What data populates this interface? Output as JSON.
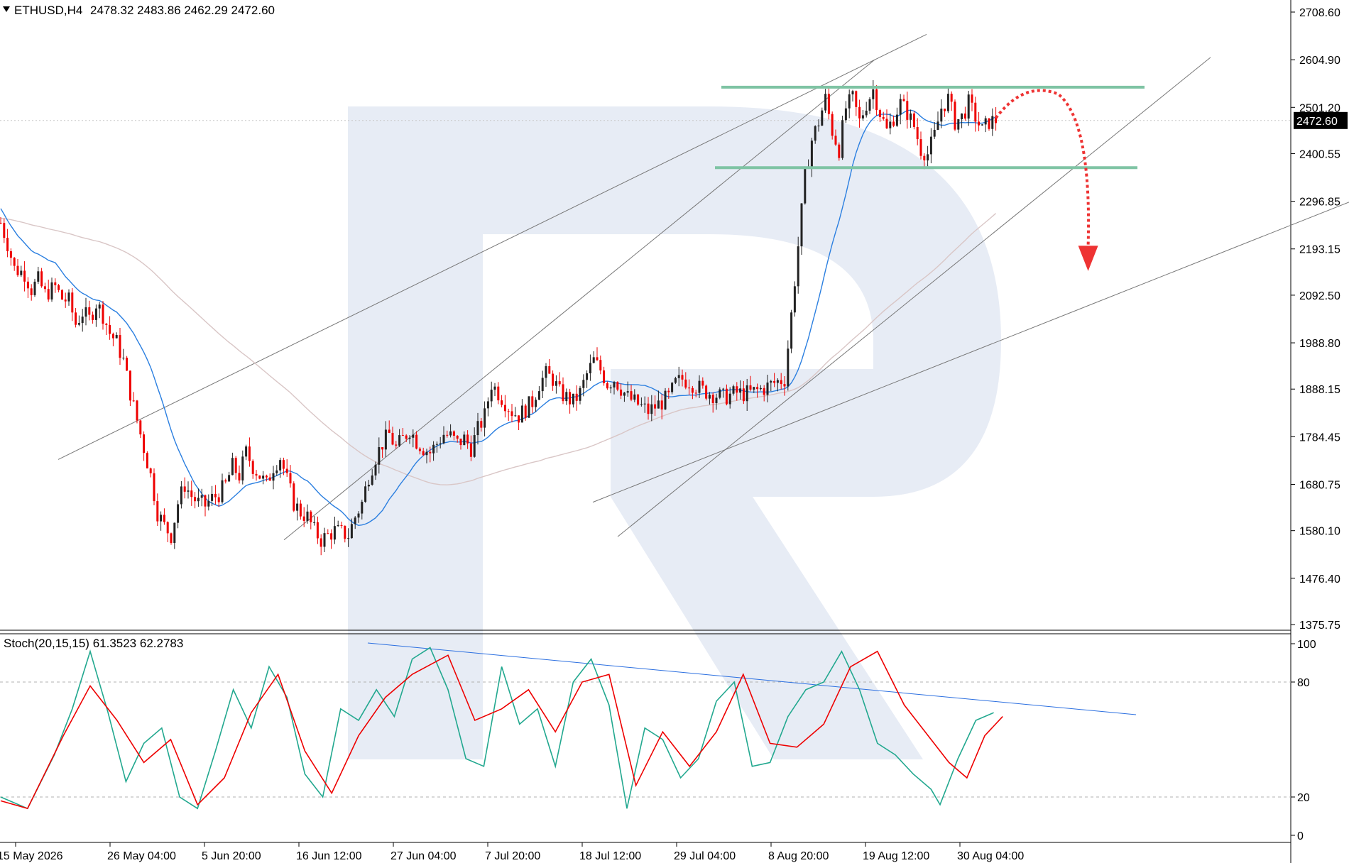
{
  "header": {
    "symbol": "ETHUSD,H4",
    "ohlc": "2478.32 2483.86 2462.29 2472.60"
  },
  "indicator": {
    "label": "Stoch(20,15,15) 61.3523 62.2783",
    "k_value": 61.3523,
    "d_value": 62.2783
  },
  "colors": {
    "bull_candle": "#222222",
    "bear_candle": "#ee0000",
    "ma_fast": "#2b7fe0",
    "ma_slow": "#d9c6c6",
    "support_resistance": "#7fc4a4",
    "trendlines": "#777777",
    "forecast_arrow": "#ee3333",
    "stoch_k": "#22a88f",
    "stoch_d": "#ee0000",
    "stoch_trendline": "#2b6fe0",
    "price_badge": "#000000"
  },
  "chart_data": {
    "type": "candlestick",
    "ylim": [
      1340,
      2730
    ],
    "price_axis_ticks": [
      "2708.60",
      "2604.90",
      "2501.20",
      "2400.55",
      "2296.85",
      "2193.15",
      "2092.50",
      "1988.80",
      "1888.15",
      "1784.45",
      "1680.75",
      "1580.10",
      "1476.40",
      "1375.75"
    ],
    "current_price": "2472.60",
    "time_axis_ticks": [
      "15 May 2026",
      "26 May 04:00",
      "5 Jun 20:00",
      "16 Jun 12:00",
      "27 Jun 04:00",
      "7 Jul 20:00",
      "18 Jul 12:00",
      "29 Jul 04:00",
      "8 Aug 20:00",
      "19 Aug 12:00",
      "30 Aug 04:00"
    ],
    "close_path": [
      [
        0,
        2250
      ],
      [
        2,
        2205
      ],
      [
        4,
        2150
      ],
      [
        7,
        2140
      ],
      [
        9,
        2105
      ],
      [
        11,
        2125
      ],
      [
        13,
        2095
      ],
      [
        16,
        2110
      ],
      [
        18,
        2085
      ],
      [
        20,
        2080
      ],
      [
        22,
        2030
      ],
      [
        24,
        2055
      ],
      [
        26,
        2040
      ],
      [
        28,
        2075
      ],
      [
        30,
        2050
      ],
      [
        32,
        2010
      ],
      [
        34,
        1990
      ],
      [
        36,
        1950
      ],
      [
        38,
        1880
      ],
      [
        40,
        1820
      ],
      [
        42,
        1760
      ],
      [
        44,
        1700
      ],
      [
        46,
        1620
      ],
      [
        48,
        1590
      ],
      [
        50,
        1570
      ],
      [
        52,
        1640
      ],
      [
        54,
        1680
      ],
      [
        56,
        1655
      ],
      [
        58,
        1640
      ],
      [
        60,
        1635
      ],
      [
        62,
        1650
      ],
      [
        64,
        1660
      ],
      [
        66,
        1680
      ],
      [
        68,
        1720
      ],
      [
        70,
        1700
      ],
      [
        72,
        1750
      ],
      [
        74,
        1720
      ],
      [
        76,
        1700
      ],
      [
        78,
        1680
      ],
      [
        80,
        1720
      ],
      [
        82,
        1740
      ],
      [
        84,
        1690
      ],
      [
        86,
        1640
      ],
      [
        88,
        1620
      ],
      [
        90,
        1610
      ],
      [
        92,
        1580
      ],
      [
        94,
        1560
      ],
      [
        96,
        1570
      ],
      [
        98,
        1580
      ],
      [
        100,
        1575
      ],
      [
        102,
        1570
      ],
      [
        104,
        1610
      ],
      [
        106,
        1640
      ],
      [
        108,
        1700
      ],
      [
        110,
        1740
      ],
      [
        112,
        1770
      ],
      [
        114,
        1790
      ],
      [
        116,
        1760
      ],
      [
        118,
        1780
      ],
      [
        120,
        1800
      ],
      [
        122,
        1775
      ],
      [
        124,
        1760
      ],
      [
        126,
        1750
      ],
      [
        128,
        1770
      ],
      [
        130,
        1790
      ],
      [
        132,
        1785
      ],
      [
        134,
        1770
      ],
      [
        136,
        1780
      ],
      [
        138,
        1760
      ],
      [
        140,
        1800
      ],
      [
        142,
        1830
      ],
      [
        144,
        1900
      ],
      [
        146,
        1880
      ],
      [
        148,
        1860
      ],
      [
        150,
        1840
      ],
      [
        152,
        1830
      ],
      [
        154,
        1845
      ],
      [
        156,
        1860
      ],
      [
        158,
        1900
      ],
      [
        160,
        1920
      ],
      [
        162,
        1910
      ],
      [
        164,
        1880
      ],
      [
        166,
        1870
      ],
      [
        168,
        1860
      ],
      [
        170,
        1880
      ],
      [
        172,
        1920
      ],
      [
        174,
        1950
      ],
      [
        176,
        1930
      ],
      [
        178,
        1900
      ],
      [
        180,
        1910
      ],
      [
        182,
        1890
      ],
      [
        184,
        1870
      ],
      [
        186,
        1860
      ],
      [
        188,
        1850
      ],
      [
        190,
        1840
      ],
      [
        192,
        1850
      ],
      [
        194,
        1860
      ],
      [
        196,
        1870
      ],
      [
        198,
        1900
      ],
      [
        200,
        1910
      ],
      [
        202,
        1905
      ],
      [
        204,
        1895
      ],
      [
        206,
        1885
      ],
      [
        208,
        1880
      ],
      [
        210,
        1875
      ],
      [
        212,
        1870
      ],
      [
        214,
        1875
      ],
      [
        216,
        1880
      ],
      [
        218,
        1878
      ],
      [
        220,
        1880
      ],
      [
        222,
        1885
      ],
      [
        224,
        1890
      ],
      [
        226,
        1898
      ],
      [
        228,
        1905
      ],
      [
        230,
        1910
      ],
      [
        232,
        2050
      ],
      [
        234,
        2200
      ],
      [
        236,
        2350
      ],
      [
        238,
        2430
      ],
      [
        240,
        2470
      ],
      [
        242,
        2520
      ],
      [
        244,
        2450
      ],
      [
        246,
        2410
      ],
      [
        248,
        2500
      ],
      [
        250,
        2520
      ],
      [
        252,
        2470
      ],
      [
        254,
        2510
      ],
      [
        256,
        2540
      ],
      [
        258,
        2490
      ],
      [
        260,
        2450
      ],
      [
        262,
        2480
      ],
      [
        264,
        2510
      ],
      [
        266,
        2490
      ],
      [
        268,
        2460
      ],
      [
        270,
        2410
      ],
      [
        272,
        2400
      ],
      [
        274,
        2440
      ],
      [
        276,
        2500
      ],
      [
        278,
        2520
      ],
      [
        280,
        2470
      ],
      [
        282,
        2480
      ],
      [
        284,
        2510
      ],
      [
        286,
        2480
      ],
      [
        288,
        2450
      ],
      [
        290,
        2470
      ],
      [
        292,
        2473
      ]
    ],
    "resistance": 2545,
    "support": 2370,
    "forecast": "down from ~2540 toward ~2190",
    "stochastic": {
      "ylim": [
        0,
        100
      ],
      "levels": [
        20,
        80
      ],
      "ticks": [
        "100",
        "80",
        "20",
        "0"
      ],
      "k_points": [
        [
          0,
          20
        ],
        [
          6,
          14
        ],
        [
          12,
          42
        ],
        [
          16,
          66
        ],
        [
          20,
          96
        ],
        [
          24,
          64
        ],
        [
          28,
          28
        ],
        [
          32,
          48
        ],
        [
          36,
          56
        ],
        [
          40,
          20
        ],
        [
          44,
          14
        ],
        [
          48,
          44
        ],
        [
          52,
          76
        ],
        [
          56,
          56
        ],
        [
          60,
          88
        ],
        [
          64,
          72
        ],
        [
          68,
          32
        ],
        [
          72,
          20
        ],
        [
          76,
          66
        ],
        [
          80,
          60
        ],
        [
          84,
          76
        ],
        [
          88,
          62
        ],
        [
          92,
          92
        ],
        [
          96,
          98
        ],
        [
          100,
          76
        ],
        [
          104,
          40
        ],
        [
          108,
          36
        ],
        [
          112,
          88
        ],
        [
          116,
          58
        ],
        [
          120,
          66
        ],
        [
          124,
          36
        ],
        [
          128,
          80
        ],
        [
          132,
          92
        ],
        [
          136,
          68
        ],
        [
          140,
          14
        ],
        [
          144,
          56
        ],
        [
          148,
          50
        ],
        [
          152,
          30
        ],
        [
          156,
          40
        ],
        [
          160,
          70
        ],
        [
          164,
          80
        ],
        [
          168,
          36
        ],
        [
          172,
          38
        ],
        [
          176,
          62
        ],
        [
          180,
          76
        ],
        [
          184,
          80
        ],
        [
          188,
          96
        ],
        [
          192,
          76
        ],
        [
          196,
          48
        ],
        [
          200,
          42
        ],
        [
          204,
          32
        ],
        [
          208,
          24
        ],
        [
          210,
          16
        ],
        [
          214,
          40
        ],
        [
          218,
          60
        ],
        [
          222,
          64
        ]
      ],
      "d_points": [
        [
          0,
          18
        ],
        [
          6,
          14
        ],
        [
          14,
          52
        ],
        [
          20,
          78
        ],
        [
          26,
          60
        ],
        [
          32,
          38
        ],
        [
          38,
          50
        ],
        [
          44,
          16
        ],
        [
          50,
          30
        ],
        [
          56,
          64
        ],
        [
          62,
          84
        ],
        [
          68,
          44
        ],
        [
          74,
          22
        ],
        [
          80,
          52
        ],
        [
          86,
          72
        ],
        [
          92,
          84
        ],
        [
          100,
          94
        ],
        [
          106,
          60
        ],
        [
          112,
          66
        ],
        [
          118,
          76
        ],
        [
          124,
          54
        ],
        [
          130,
          80
        ],
        [
          136,
          84
        ],
        [
          142,
          26
        ],
        [
          148,
          54
        ],
        [
          154,
          36
        ],
        [
          160,
          54
        ],
        [
          166,
          84
        ],
        [
          172,
          48
        ],
        [
          178,
          46
        ],
        [
          184,
          58
        ],
        [
          190,
          88
        ],
        [
          196,
          96
        ],
        [
          202,
          68
        ],
        [
          208,
          50
        ],
        [
          212,
          38
        ],
        [
          216,
          30
        ],
        [
          220,
          52
        ],
        [
          224,
          62
        ]
      ]
    }
  }
}
